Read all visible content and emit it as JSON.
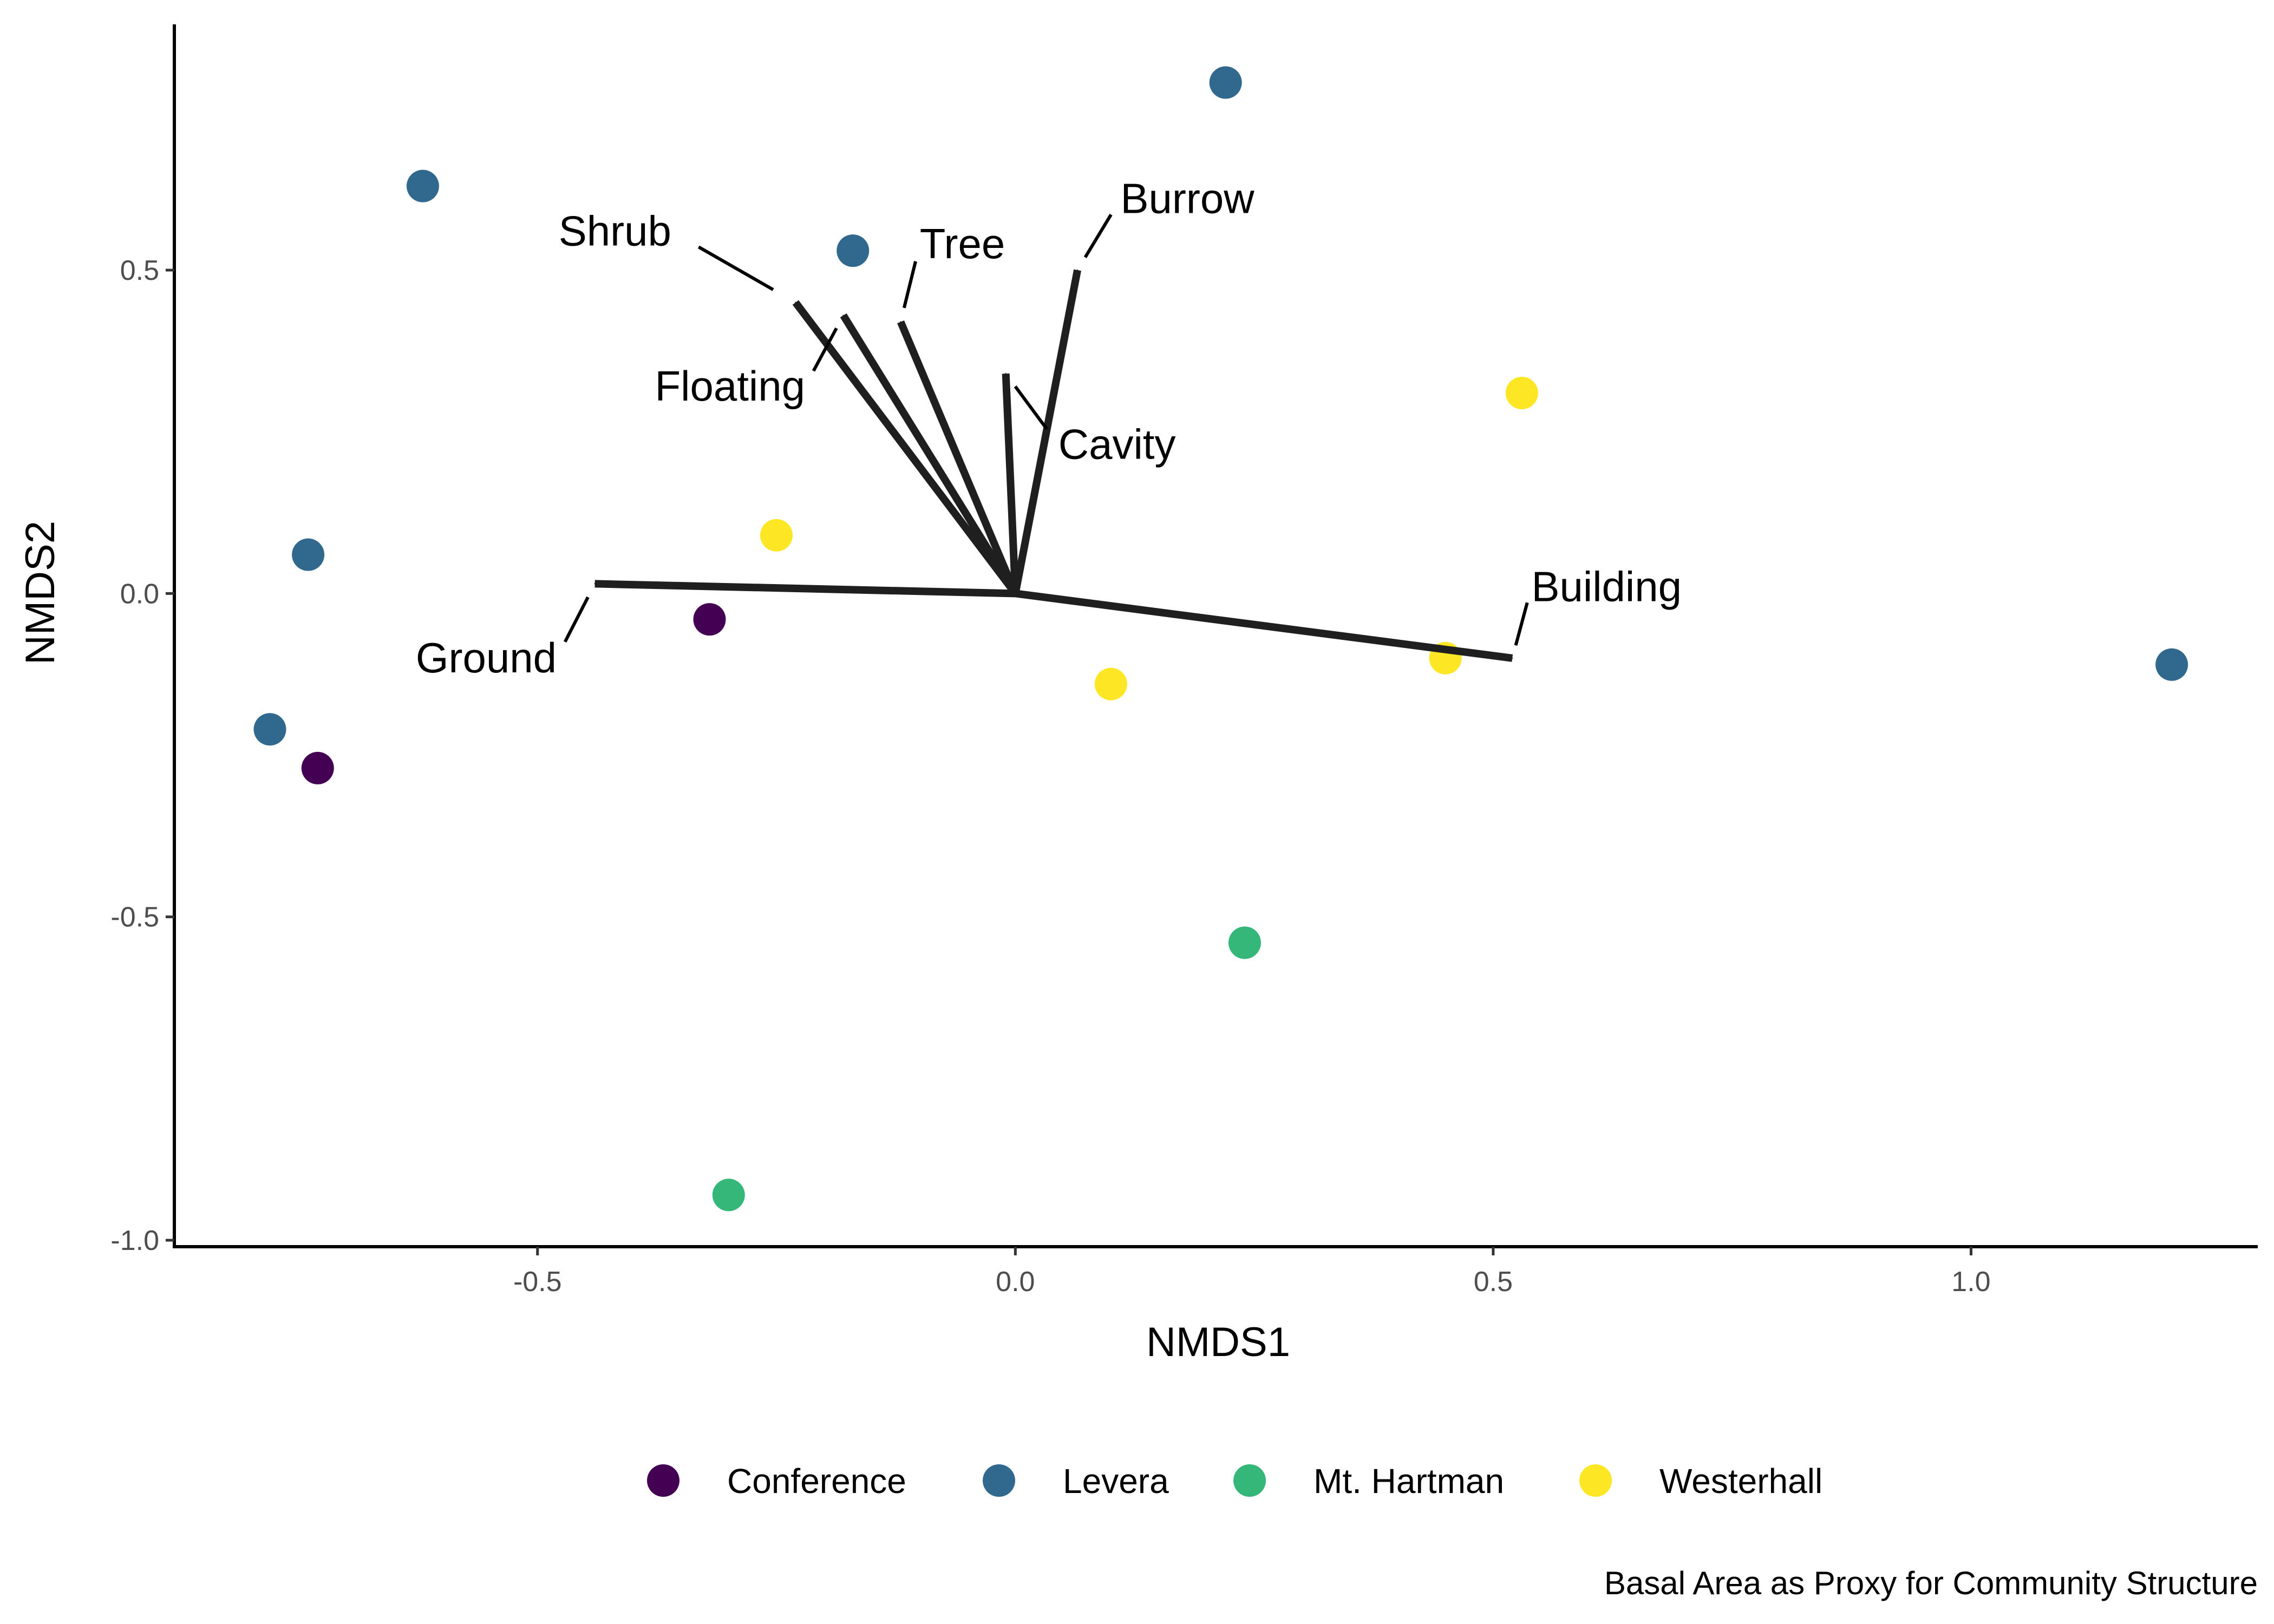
{
  "chart_data": {
    "type": "scatter",
    "xlabel": "NMDS1",
    "ylabel": "NMDS2",
    "xlim": [
      -0.88,
      1.3
    ],
    "ylim": [
      -1.01,
      0.88
    ],
    "x_ticks": [
      -0.5,
      0.0,
      0.5,
      1.0
    ],
    "x_tick_labels": [
      "-0.5",
      "0.0",
      "0.5",
      "1.0"
    ],
    "y_ticks": [
      -1.0,
      -0.5,
      0.0,
      0.5
    ],
    "y_tick_labels": [
      "-1.0",
      "-0.5",
      "0.0",
      "0.5"
    ],
    "grid": false,
    "legend_position": "bottom",
    "caption": "Basal Area as Proxy for Community Structure",
    "groups": [
      {
        "name": "Conference",
        "color": "#440154"
      },
      {
        "name": "Levera",
        "color": "#31688E"
      },
      {
        "name": "Mt. Hartman",
        "color": "#35B779"
      },
      {
        "name": "Westerhall",
        "color": "#FDE725"
      }
    ],
    "series": [
      {
        "name": "Conference",
        "points": [
          {
            "x": -0.32,
            "y": -0.04
          },
          {
            "x": -0.73,
            "y": -0.27
          }
        ]
      },
      {
        "name": "Levera",
        "points": [
          {
            "x": 0.22,
            "y": 0.79
          },
          {
            "x": -0.62,
            "y": 0.63
          },
          {
            "x": -0.17,
            "y": 0.53
          },
          {
            "x": -0.74,
            "y": 0.06
          },
          {
            "x": -0.78,
            "y": -0.21
          },
          {
            "x": 1.21,
            "y": -0.11
          }
        ]
      },
      {
        "name": "Mt. Hartman",
        "points": [
          {
            "x": 0.24,
            "y": -0.54
          },
          {
            "x": -0.3,
            "y": -0.93
          }
        ]
      },
      {
        "name": "Westerhall",
        "points": [
          {
            "x": 0.53,
            "y": 0.31
          },
          {
            "x": -0.25,
            "y": 0.09
          },
          {
            "x": 0.45,
            "y": -0.1
          },
          {
            "x": 0.1,
            "y": -0.14
          }
        ]
      }
    ],
    "vectors": [
      {
        "name": "Shrub",
        "x": -0.23,
        "y": 0.45,
        "label_x": -0.36,
        "label_y": 0.56,
        "anchor": "end"
      },
      {
        "name": "Tree",
        "x": -0.12,
        "y": 0.42,
        "label_x": -0.1,
        "label_y": 0.54,
        "anchor": "start"
      },
      {
        "name": "Burrow",
        "x": 0.065,
        "y": 0.5,
        "label_x": 0.11,
        "label_y": 0.61,
        "anchor": "start"
      },
      {
        "name": "Floating",
        "x": -0.18,
        "y": 0.43,
        "label_x": -0.22,
        "label_y": 0.32,
        "anchor": "end"
      },
      {
        "name": "Cavity",
        "x": -0.01,
        "y": 0.34,
        "label_x": 0.045,
        "label_y": 0.23,
        "anchor": "start"
      },
      {
        "name": "Ground",
        "x": -0.44,
        "y": 0.015,
        "label_x": -0.48,
        "label_y": -0.1,
        "anchor": "end"
      },
      {
        "name": "Building",
        "x": 0.52,
        "y": -0.1,
        "label_x": 0.54,
        "label_y": 0.01,
        "anchor": "start"
      }
    ]
  }
}
